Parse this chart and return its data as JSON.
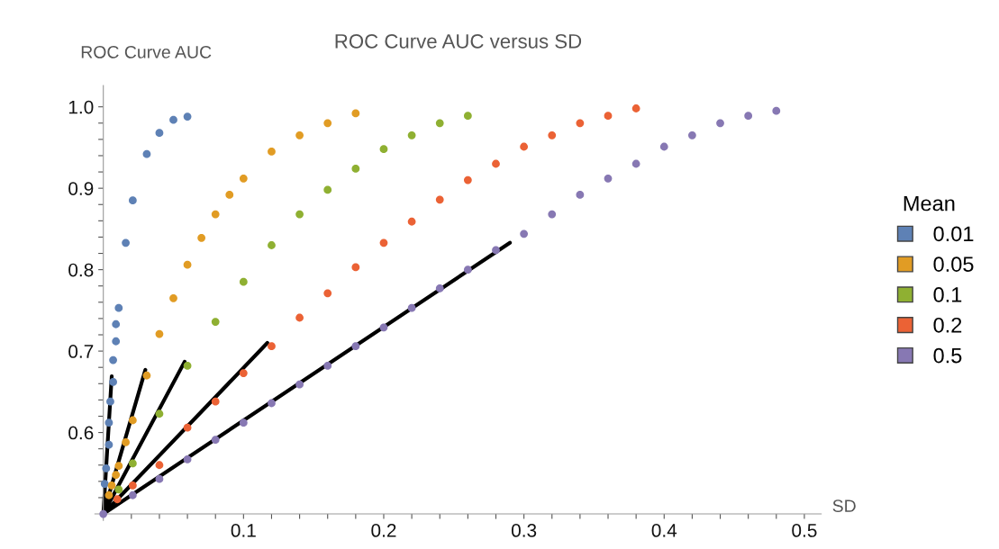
{
  "chart_data": {
    "type": "scatter",
    "title": "ROC Curve AUC versus SD",
    "xlabel": "SD",
    "ylabel": "ROC Curve AUC",
    "legend_title": "Mean",
    "legend": "right",
    "grid": false,
    "marker": "circle",
    "xlim": [
      -0.006,
      0.512
    ],
    "ylim": [
      0.492,
      1.026
    ],
    "xticks": [
      {
        "value": 0.02,
        "label": null
      },
      {
        "value": 0.04,
        "label": null
      },
      {
        "value": 0.06,
        "label": null
      },
      {
        "value": 0.08,
        "label": null
      },
      0.1,
      {
        "value": 0.12,
        "label": null
      },
      {
        "value": 0.14,
        "label": null
      },
      {
        "value": 0.16,
        "label": null
      },
      {
        "value": 0.18,
        "label": null
      },
      0.2,
      {
        "value": 0.22,
        "label": null
      },
      {
        "value": 0.24,
        "label": null
      },
      {
        "value": 0.26,
        "label": null
      },
      {
        "value": 0.28,
        "label": null
      },
      0.3,
      {
        "value": 0.32,
        "label": null
      },
      {
        "value": 0.34,
        "label": null
      },
      {
        "value": 0.36,
        "label": null
      },
      {
        "value": 0.38,
        "label": null
      },
      0.4,
      {
        "value": 0.42,
        "label": null
      },
      {
        "value": 0.44,
        "label": null
      },
      {
        "value": 0.46,
        "label": null
      },
      {
        "value": 0.48,
        "label": null
      },
      0.5
    ],
    "yticks": [
      {
        "value": 0.52,
        "label": null
      },
      {
        "value": 0.54,
        "label": null
      },
      {
        "value": 0.56,
        "label": null
      },
      {
        "value": 0.58,
        "label": null
      },
      0.6,
      {
        "value": 0.62,
        "label": null
      },
      {
        "value": 0.64,
        "label": null
      },
      {
        "value": 0.66,
        "label": null
      },
      {
        "value": 0.68,
        "label": null
      },
      0.7,
      {
        "value": 0.72,
        "label": null
      },
      {
        "value": 0.74,
        "label": null
      },
      {
        "value": 0.76,
        "label": null
      },
      {
        "value": 0.78,
        "label": null
      },
      0.8,
      {
        "value": 0.82,
        "label": null
      },
      {
        "value": 0.84,
        "label": null
      },
      {
        "value": 0.86,
        "label": null
      },
      {
        "value": 0.88,
        "label": null
      },
      0.9,
      {
        "value": 0.92,
        "label": null
      },
      {
        "value": 0.94,
        "label": null
      },
      {
        "value": 0.96,
        "label": null
      },
      {
        "value": 0.98,
        "label": null
      },
      {
        "value": 1.0,
        "label": "1.0"
      }
    ],
    "series": [
      {
        "type": "line",
        "marker": "none",
        "color": "#000000",
        "x": [
          0,
          0.006
        ],
        "values": [
          0.5,
          0.669
        ]
      },
      {
        "type": "line",
        "marker": "none",
        "color": "#000000",
        "x": [
          0,
          0.03
        ],
        "values": [
          0.5,
          0.677
        ]
      },
      {
        "type": "line",
        "marker": "none",
        "color": "#000000",
        "x": [
          0,
          0.058
        ],
        "values": [
          0.5,
          0.687
        ]
      },
      {
        "type": "line",
        "marker": "none",
        "color": "#000000",
        "x": [
          0,
          0.117
        ],
        "values": [
          0.5,
          0.71
        ]
      },
      {
        "type": "line",
        "marker": "none",
        "color": "#000000",
        "x": [
          0,
          0.29
        ],
        "values": [
          0.5,
          0.833
        ]
      },
      {
        "name": "0.01",
        "color": "#5e81b5",
        "x": [
          0.001,
          0.002,
          0.004,
          0.004,
          0.005,
          0.007,
          0.007,
          0.009,
          0.009,
          0.011,
          0.016,
          0.021,
          0.031,
          0.04,
          0.05,
          0.06
        ],
        "values": [
          0.537,
          0.556,
          0.585,
          0.612,
          0.638,
          0.662,
          0.689,
          0.712,
          0.733,
          0.753,
          0.833,
          0.885,
          0.942,
          0.968,
          0.984,
          0.988
        ]
      },
      {
        "name": "0.05",
        "color": "#e19c24",
        "x": [
          0.004,
          0.006,
          0.009,
          0.011,
          0.016,
          0.021,
          0.031,
          0.04,
          0.05,
          0.06,
          0.07,
          0.08,
          0.09,
          0.1,
          0.12,
          0.14,
          0.16,
          0.18
        ],
        "values": [
          0.523,
          0.535,
          0.548,
          0.559,
          0.588,
          0.615,
          0.67,
          0.721,
          0.765,
          0.806,
          0.839,
          0.868,
          0.892,
          0.912,
          0.945,
          0.965,
          0.98,
          0.992
        ]
      },
      {
        "name": "0.1",
        "color": "#8fb032",
        "x": [
          0.011,
          0.021,
          0.04,
          0.06,
          0.08,
          0.1,
          0.12,
          0.14,
          0.16,
          0.18,
          0.2,
          0.22,
          0.24,
          0.26
        ],
        "values": [
          0.53,
          0.562,
          0.623,
          0.682,
          0.736,
          0.785,
          0.83,
          0.868,
          0.898,
          0.924,
          0.948,
          0.965,
          0.98,
          0.989
        ]
      },
      {
        "name": "0.2",
        "color": "#eb6235",
        "x": [
          0.01,
          0.021,
          0.04,
          0.06,
          0.08,
          0.1,
          0.12,
          0.14,
          0.16,
          0.18,
          0.2,
          0.22,
          0.24,
          0.26,
          0.28,
          0.3,
          0.32,
          0.34,
          0.36,
          0.38
        ],
        "values": [
          0.518,
          0.535,
          0.56,
          0.606,
          0.638,
          0.673,
          0.706,
          0.741,
          0.771,
          0.803,
          0.833,
          0.859,
          0.886,
          0.91,
          0.93,
          0.951,
          0.965,
          0.98,
          0.989,
          0.998
        ]
      },
      {
        "name": "0.5",
        "color": "#8778b3",
        "x": [
          0,
          0.021,
          0.04,
          0.06,
          0.08,
          0.1,
          0.12,
          0.14,
          0.16,
          0.18,
          0.2,
          0.22,
          0.24,
          0.26,
          0.28,
          0.3,
          0.32,
          0.34,
          0.36,
          0.38,
          0.4,
          0.42,
          0.44,
          0.46,
          0.48
        ],
        "values": [
          0.5,
          0.523,
          0.543,
          0.567,
          0.591,
          0.612,
          0.636,
          0.659,
          0.682,
          0.706,
          0.729,
          0.753,
          0.777,
          0.8,
          0.824,
          0.844,
          0.868,
          0.892,
          0.912,
          0.93,
          0.951,
          0.965,
          0.98,
          0.989,
          0.995
        ]
      }
    ]
  }
}
